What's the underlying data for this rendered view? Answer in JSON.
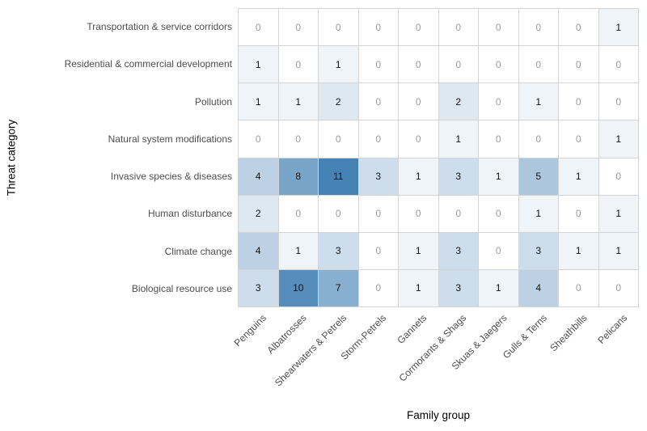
{
  "chart_data": {
    "type": "heatmap",
    "title": "",
    "xlabel": "Family group",
    "ylabel": "Threat category",
    "columns": [
      "Penguins",
      "Albatrosses",
      "Shearwaters & Petrels",
      "Storm-Petrels",
      "Gannets",
      "Cormorants & Shags",
      "Skuas & Jaegers",
      "Gulls & Terns",
      "Sheathbills",
      "Pelicans"
    ],
    "rows": [
      "Transportation & service corridors",
      "Residential & commercial development",
      "Pollution",
      "Natural system modifications",
      "Invasive species & diseases",
      "Human disturbance",
      "Climate change",
      "Biological resource use"
    ],
    "values": [
      [
        0,
        0,
        0,
        0,
        0,
        0,
        0,
        0,
        0,
        1
      ],
      [
        1,
        0,
        1,
        0,
        0,
        0,
        0,
        0,
        0,
        0
      ],
      [
        1,
        1,
        2,
        0,
        0,
        2,
        0,
        1,
        0,
        0
      ],
      [
        0,
        0,
        0,
        0,
        0,
        1,
        0,
        0,
        0,
        1
      ],
      [
        4,
        8,
        11,
        3,
        1,
        3,
        1,
        5,
        1,
        0
      ],
      [
        2,
        0,
        0,
        0,
        0,
        0,
        0,
        1,
        0,
        1
      ],
      [
        4,
        1,
        3,
        0,
        1,
        3,
        0,
        3,
        1,
        1
      ],
      [
        3,
        10,
        7,
        0,
        1,
        3,
        1,
        4,
        0,
        0
      ]
    ],
    "value_range": [
      0,
      11
    ],
    "legend_position": "none",
    "grid_on": true,
    "colors": {
      "fill_low": "#FFFFFF",
      "fill_high": "#4682B4",
      "grid_line": "#D4D4D4",
      "zero_text": "#9B9B9B",
      "value_text": "#111111",
      "axis_tick_text": "#4D4D4D",
      "axis_title_text": "#000000"
    }
  }
}
